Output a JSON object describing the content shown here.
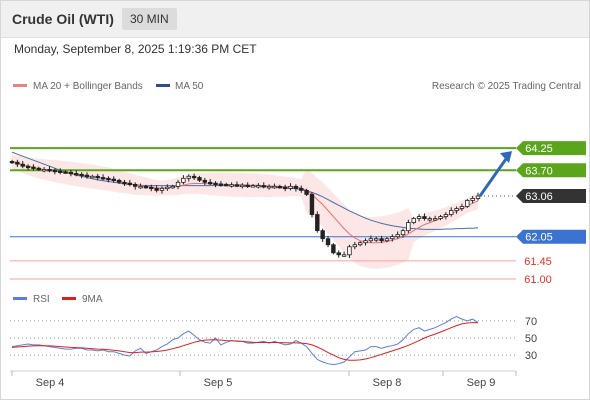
{
  "header": {
    "title": "Crude Oil (WTI)",
    "timeframe": "30 MIN"
  },
  "datetime": "Monday, September 8, 2025 1:19:36 PM CET",
  "colors": {
    "resistance": "#5aa51c",
    "pivot": "#3b73d1",
    "support": "#f5a39c",
    "bollinger_fill": "#fde3e3",
    "ma20": "#ee7070",
    "ma50": "#4a6fa5",
    "rsi": "#5b7fd6",
    "rsi_ma": "#e02020",
    "last_price": "#333333"
  },
  "chart_data": [
    {
      "type": "candlestick",
      "legend": [
        {
          "name": "MA 20 + Bollinger Bands",
          "color": "#f08080"
        },
        {
          "name": "MA 50",
          "color": "#2c4f8c"
        }
      ],
      "source_note": "Research © 2025 Trading Central",
      "x_tick_labels": [
        "Sep 4",
        "Sep 5",
        "Sep 8",
        "Sep 9"
      ],
      "ylim": [
        60.85,
        64.7
      ],
      "levels": [
        {
          "value": 64.25,
          "label": "64.25",
          "kind": "resistance"
        },
        {
          "value": 63.7,
          "label": "63.70",
          "kind": "resistance"
        },
        {
          "value": 63.06,
          "label": "63.06",
          "kind": "last"
        },
        {
          "value": 62.05,
          "label": "62.05",
          "kind": "pivot"
        },
        {
          "value": 61.45,
          "label": "61.45",
          "kind": "support"
        },
        {
          "value": 61.0,
          "label": "61.00",
          "kind": "support"
        }
      ],
      "close": [
        63.9,
        63.85,
        63.8,
        63.78,
        63.75,
        63.72,
        63.72,
        63.7,
        63.68,
        63.66,
        63.65,
        63.62,
        63.6,
        63.58,
        63.55,
        63.55,
        63.52,
        63.5,
        63.48,
        63.45,
        63.4,
        63.38,
        63.35,
        63.3,
        63.3,
        63.28,
        63.25,
        63.2,
        63.25,
        63.28,
        63.3,
        63.4,
        63.5,
        63.55,
        63.52,
        63.45,
        63.4,
        63.38,
        63.36,
        63.35,
        63.34,
        63.34,
        63.33,
        63.33,
        63.32,
        63.32,
        63.32,
        63.3,
        63.3,
        63.3,
        63.28,
        63.25,
        63.3,
        63.25,
        63.2,
        63.1,
        62.6,
        62.2,
        62.0,
        61.85,
        61.65,
        61.6,
        61.6,
        61.8,
        61.85,
        61.9,
        61.95,
        62.0,
        62.0,
        61.95,
        62.0,
        62.05,
        62.1,
        62.2,
        62.4,
        62.5,
        62.55,
        62.5,
        62.5,
        62.5,
        62.55,
        62.6,
        62.7,
        62.75,
        62.8,
        62.95,
        63.0,
        63.06
      ],
      "ma20": [
        63.92,
        63.88,
        63.84,
        63.8,
        63.77,
        63.74,
        63.72,
        63.7,
        63.68,
        63.66,
        63.64,
        63.62,
        63.6,
        63.58,
        63.56,
        63.54,
        63.52,
        63.5,
        63.48,
        63.45,
        63.42,
        63.4,
        63.37,
        63.34,
        63.32,
        63.3,
        63.28,
        63.26,
        63.26,
        63.27,
        63.28,
        63.3,
        63.33,
        63.36,
        63.37,
        63.37,
        63.37,
        63.36,
        63.36,
        63.35,
        63.35,
        63.34,
        63.34,
        63.34,
        63.33,
        63.33,
        63.33,
        63.32,
        63.31,
        63.31,
        63.3,
        63.29,
        63.29,
        63.28,
        63.26,
        63.2,
        63.1,
        62.97,
        62.85,
        62.7,
        62.55,
        62.4,
        62.25,
        62.12,
        62.02,
        61.95,
        61.92,
        61.9,
        61.9,
        61.91,
        61.93,
        61.96,
        62.0,
        62.05,
        62.12,
        62.2,
        62.28,
        62.35,
        62.4,
        62.45,
        62.5,
        62.55,
        62.62,
        62.68,
        62.75,
        62.82,
        62.88,
        62.94
      ],
      "ma50": [
        64.15,
        64.1,
        64.05,
        64.0,
        63.95,
        63.9,
        63.85,
        63.8,
        63.75,
        63.7,
        63.66,
        63.62,
        63.58,
        63.55,
        63.52,
        63.49,
        63.46,
        63.44,
        63.42,
        63.4,
        63.38,
        63.36,
        63.35,
        63.34,
        63.33,
        63.32,
        63.32,
        63.32,
        63.32,
        63.32,
        63.32,
        63.32,
        63.32,
        63.32,
        63.32,
        63.32,
        63.32,
        63.32,
        63.32,
        63.32,
        63.32,
        63.31,
        63.31,
        63.31,
        63.31,
        63.3,
        63.3,
        63.3,
        63.29,
        63.28,
        63.27,
        63.26,
        63.25,
        63.24,
        63.22,
        63.19,
        63.15,
        63.1,
        63.04,
        62.97,
        62.9,
        62.83,
        62.76,
        62.69,
        62.63,
        62.57,
        62.51,
        62.46,
        62.42,
        62.38,
        62.35,
        62.32,
        62.3,
        62.28,
        62.26,
        62.25,
        62.24,
        62.23,
        62.23,
        62.23,
        62.23,
        62.24,
        62.24,
        62.25,
        62.25,
        62.26,
        62.26,
        62.27
      ]
    },
    {
      "type": "line",
      "legend": [
        {
          "name": "RSI",
          "color": "#5b7fd6"
        },
        {
          "name": "9MA",
          "color": "#e02020"
        }
      ],
      "ylim": [
        15,
        85
      ],
      "y_ticks": [
        30,
        50,
        70
      ],
      "rsi": [
        40,
        41,
        42,
        43,
        42,
        42,
        41,
        40,
        39,
        38,
        37,
        37,
        38,
        38,
        36,
        36,
        35,
        36,
        34,
        34,
        32,
        30,
        29,
        35,
        38,
        32,
        34,
        36,
        40,
        43,
        48,
        50,
        55,
        58,
        53,
        48,
        45,
        44,
        50,
        42,
        45,
        47,
        46,
        46,
        44,
        44,
        45,
        46,
        44,
        46,
        44,
        42,
        43,
        47,
        44,
        40,
        32,
        25,
        22,
        20,
        19,
        20,
        22,
        28,
        34,
        35,
        36,
        40,
        40,
        38,
        40,
        41,
        43,
        48,
        55,
        60,
        62,
        58,
        60,
        62,
        65,
        68,
        72,
        75,
        72,
        70,
        72,
        68
      ],
      "rsi_ma": [
        39,
        39.5,
        40,
        40.5,
        40.8,
        41,
        41,
        40.8,
        40.5,
        40,
        39.5,
        39,
        38.8,
        38.5,
        38,
        37.5,
        37,
        36.8,
        36.3,
        35.8,
        35,
        34,
        33,
        33,
        33.5,
        33.5,
        33.8,
        34.2,
        35,
        36,
        37.5,
        39,
        41,
        43,
        45,
        46.5,
        47.5,
        47.8,
        48,
        47.5,
        47,
        46.8,
        46.5,
        46,
        45.5,
        45,
        44.8,
        44.8,
        44.7,
        44.7,
        44.6,
        44.4,
        44.3,
        44.3,
        44,
        43.5,
        42,
        39.5,
        36.5,
        33,
        30,
        27,
        25,
        24,
        24,
        24.5,
        25.5,
        27,
        29,
        31,
        33,
        35,
        37,
        39,
        41.5,
        44,
        47,
        50,
        52.5,
        54.5,
        57,
        59.5,
        62,
        64.5,
        66.5,
        67.5,
        68,
        68
      ]
    }
  ]
}
